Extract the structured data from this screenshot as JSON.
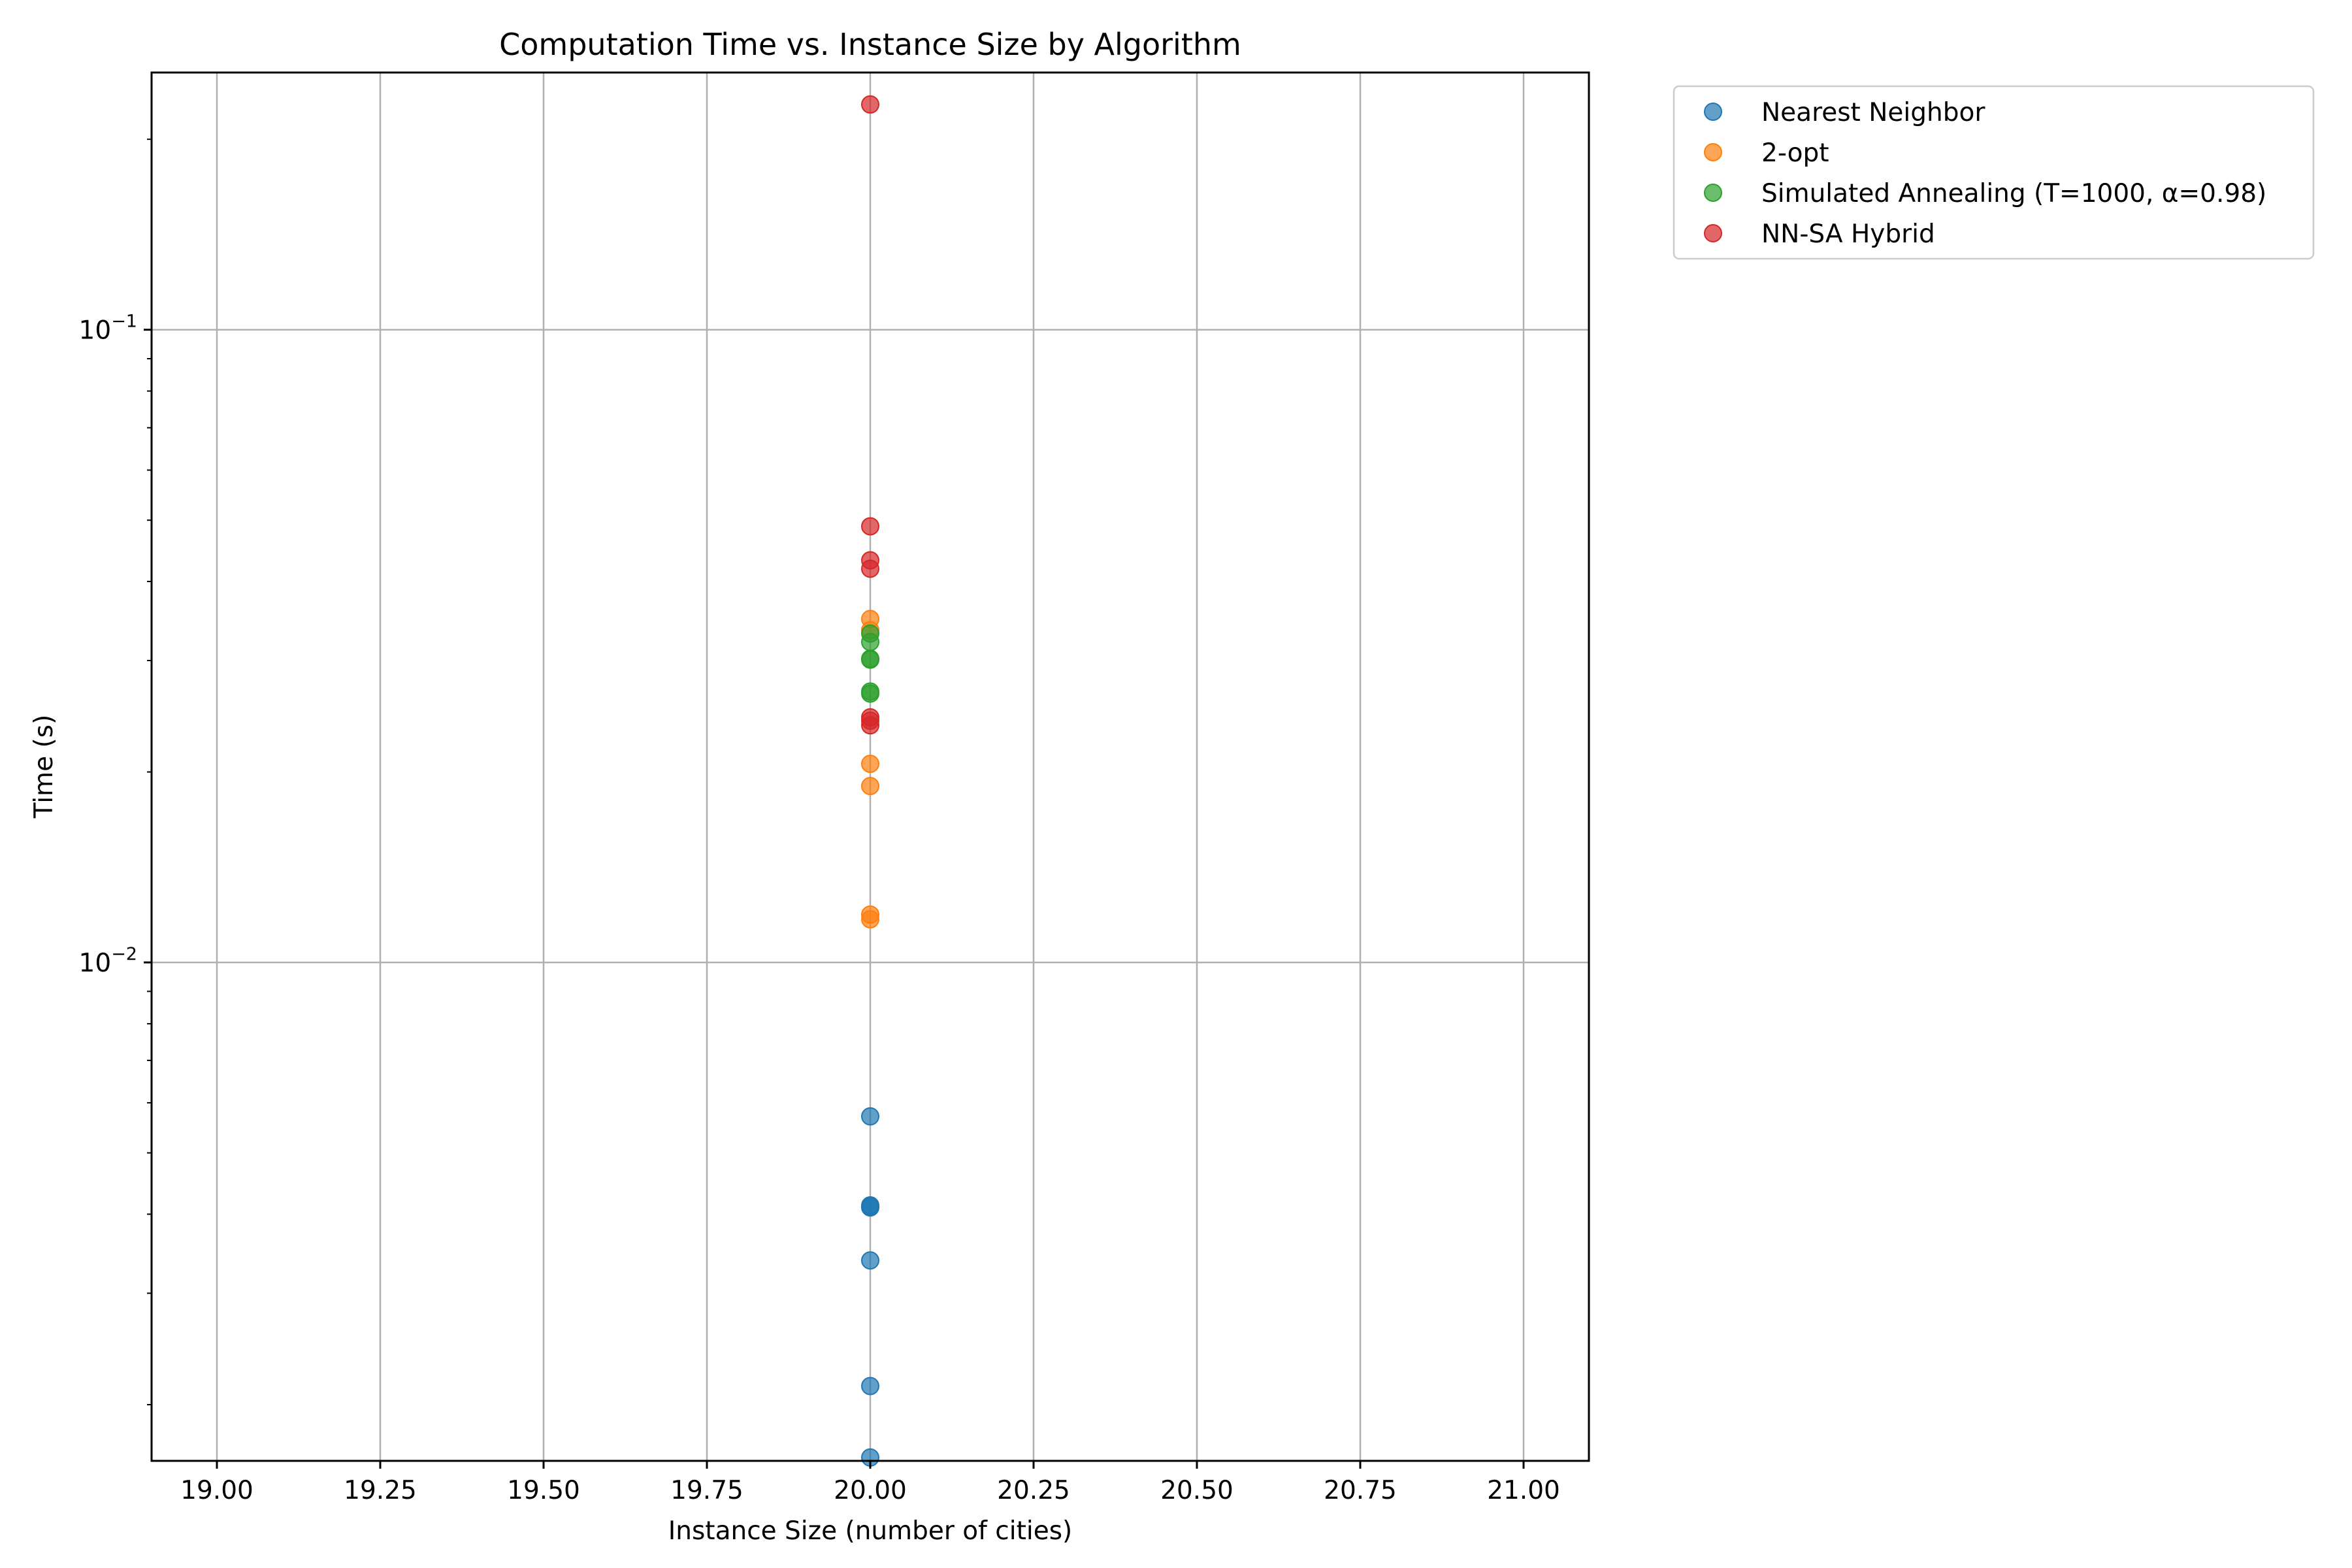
{
  "chart_data": {
    "type": "scatter",
    "title": "Computation Time vs. Instance Size by Algorithm",
    "xlabel": "Instance Size (number of cities)",
    "ylabel": "Time (s)",
    "xlim": [
      18.9,
      21.1
    ],
    "ylim": [
      0.00163,
      0.255
    ],
    "yscale": "log",
    "grid": true,
    "legend_position": "outside-top-right",
    "x_ticks": [
      "19.00",
      "19.25",
      "19.50",
      "19.75",
      "20.00",
      "20.25",
      "20.50",
      "20.75",
      "21.00"
    ],
    "y_ticks": [
      {
        "value": 0.1,
        "base": "10",
        "exp": "−1"
      },
      {
        "value": 0.01,
        "base": "10",
        "exp": "−2"
      }
    ],
    "series": [
      {
        "name": "Nearest Neighbor",
        "color": "#1f77b4",
        "x": [
          20,
          20,
          20,
          20,
          20,
          20,
          20
        ],
        "y": [
          0.00571,
          0.00411,
          0.0041,
          0.00338,
          0.00214,
          0.00165,
          0.00413
        ]
      },
      {
        "name": "2-opt",
        "color": "#ff7f0e",
        "x": [
          20,
          20,
          20,
          20,
          20,
          20
        ],
        "y": [
          0.0349,
          0.0206,
          0.019,
          0.0119,
          0.0117,
          0.0335
        ]
      },
      {
        "name": "Simulated Annealing (T=1000, α=0.98)",
        "color": "#2ca02c",
        "x": [
          20,
          20,
          20,
          20,
          20,
          20
        ],
        "y": [
          0.0331,
          0.0321,
          0.0302,
          0.0301,
          0.0268,
          0.0266
        ]
      },
      {
        "name": "NN-SA Hybrid",
        "color": "#d62728",
        "x": [
          20,
          20,
          20,
          20,
          20,
          20,
          20
        ],
        "y": [
          0.227,
          0.0489,
          0.0432,
          0.0419,
          0.0244,
          0.0241,
          0.0237
        ]
      }
    ]
  }
}
